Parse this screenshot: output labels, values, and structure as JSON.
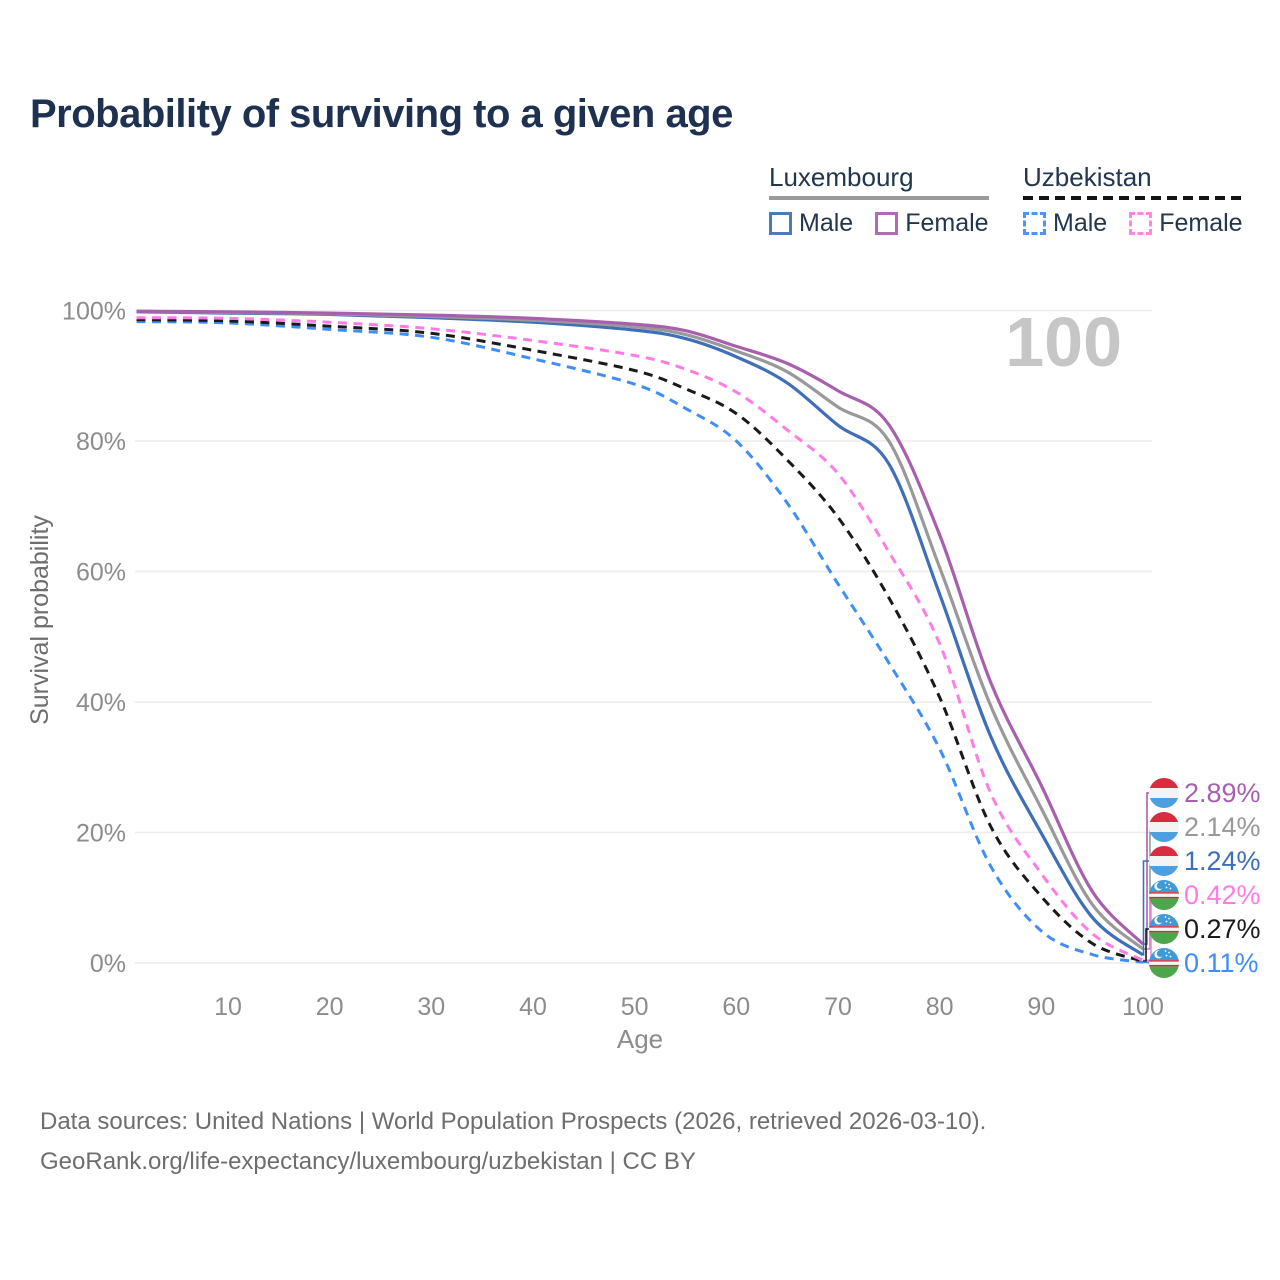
{
  "title": "Probability of surviving to a given age",
  "legend": {
    "groups": [
      {
        "name": "Luxembourg",
        "line_style": "solid",
        "underline_color": "#9A9A9A",
        "items": [
          {
            "label": "Male",
            "color": "#4C79BC"
          },
          {
            "label": "Female",
            "color": "#B06BB3"
          }
        ]
      },
      {
        "name": "Uzbekistan",
        "line_style": "dashed",
        "underline_color": "#141414",
        "items": [
          {
            "label": "Male",
            "color": "#4D94F7"
          },
          {
            "label": "Female",
            "color": "#FF85E3"
          }
        ]
      }
    ]
  },
  "chart_data": {
    "type": "line",
    "title": "Probability of surviving to a given age",
    "xlabel": "Age",
    "ylabel": "Survival probability",
    "xlim": [
      0,
      100
    ],
    "ylim": [
      0,
      100
    ],
    "x_ticks": [
      10,
      20,
      30,
      40,
      50,
      60,
      70,
      80,
      90,
      100
    ],
    "y_ticks": [
      "0%",
      "20%",
      "40%",
      "60%",
      "80%",
      "100%"
    ],
    "grid": "horizontal",
    "legend_position": "top-right",
    "age_marker_label": "100",
    "x": [
      1,
      10,
      20,
      30,
      40,
      50,
      55,
      60,
      65,
      70,
      75,
      80,
      85,
      90,
      95,
      100
    ],
    "series": [
      {
        "name": "Luxembourg Female",
        "country": "Luxembourg",
        "group": "Female",
        "style": "solid",
        "color": "#A85FAE",
        "flag": "luxembourg",
        "end_label": "2.89%",
        "values": [
          99.9,
          99.8,
          99.6,
          99.3,
          98.8,
          97.9,
          96.9,
          94.5,
          91.9,
          87.7,
          82.5,
          65.6,
          43.1,
          27.2,
          11.0,
          2.89
        ]
      },
      {
        "name": "Luxembourg Both sexes",
        "country": "Luxembourg",
        "group": "Both sexes",
        "style": "solid",
        "color": "#999999",
        "flag": "luxembourg",
        "end_label": "2.14%",
        "values": [
          99.9,
          99.7,
          99.5,
          99.1,
          98.5,
          97.5,
          96.3,
          93.8,
          90.6,
          85.2,
          80.0,
          60.6,
          39.5,
          23.7,
          9.0,
          2.14
        ]
      },
      {
        "name": "Luxembourg Male",
        "country": "Luxembourg",
        "group": "Male",
        "style": "solid",
        "color": "#3E6FB8",
        "flag": "luxembourg",
        "end_label": "1.24%",
        "values": [
          99.8,
          99.6,
          99.4,
          98.9,
          98.2,
          97.0,
          95.7,
          92.9,
          88.9,
          82.4,
          76.5,
          56.5,
          34.8,
          19.9,
          7.0,
          1.24
        ]
      },
      {
        "name": "Uzbekistan Female",
        "country": "Uzbekistan",
        "group": "Female",
        "style": "dashed",
        "color": "#FF7CE8",
        "flag": "uzbekistan",
        "end_label": "0.42%",
        "values": [
          98.9,
          98.8,
          98.2,
          97.2,
          95.4,
          93.1,
          91.0,
          87.5,
          81.7,
          75.0,
          63.0,
          48.9,
          26.1,
          13.7,
          4.5,
          0.42
        ]
      },
      {
        "name": "Uzbekistan Both sexes",
        "country": "Uzbekistan",
        "group": "Both sexes",
        "style": "dashed",
        "color": "#1A1A1A",
        "flag": "uzbekistan",
        "end_label": "0.27%",
        "values": [
          98.6,
          98.4,
          97.6,
          96.5,
          93.9,
          90.8,
          88.0,
          84.2,
          77.1,
          68.3,
          56.0,
          40.7,
          21.0,
          10.2,
          3.0,
          0.27
        ]
      },
      {
        "name": "Uzbekistan Male",
        "country": "Uzbekistan",
        "group": "Male",
        "style": "dashed",
        "color": "#3F8EF5",
        "flag": "uzbekistan",
        "end_label": "0.11%",
        "values": [
          98.3,
          98.1,
          97.1,
          95.9,
          92.6,
          88.7,
          85.0,
          80.0,
          70.5,
          58.1,
          46.0,
          32.8,
          14.9,
          4.9,
          1.3,
          0.11
        ]
      }
    ]
  },
  "colors": {
    "title_text": "#1E3150",
    "legend_text": "#22364E",
    "tick_text": "#8C8C8C",
    "gridline": "#ECECEC",
    "watermark": "#C6C6C6",
    "footer_text": "#6E6E6E"
  },
  "footer": {
    "line1": "Data sources: United Nations | World Population Prospects (2026, retrieved 2026-03-10).",
    "line2": "GeoRank.org/life-expectancy/luxembourg/uzbekistan | CC BY"
  }
}
